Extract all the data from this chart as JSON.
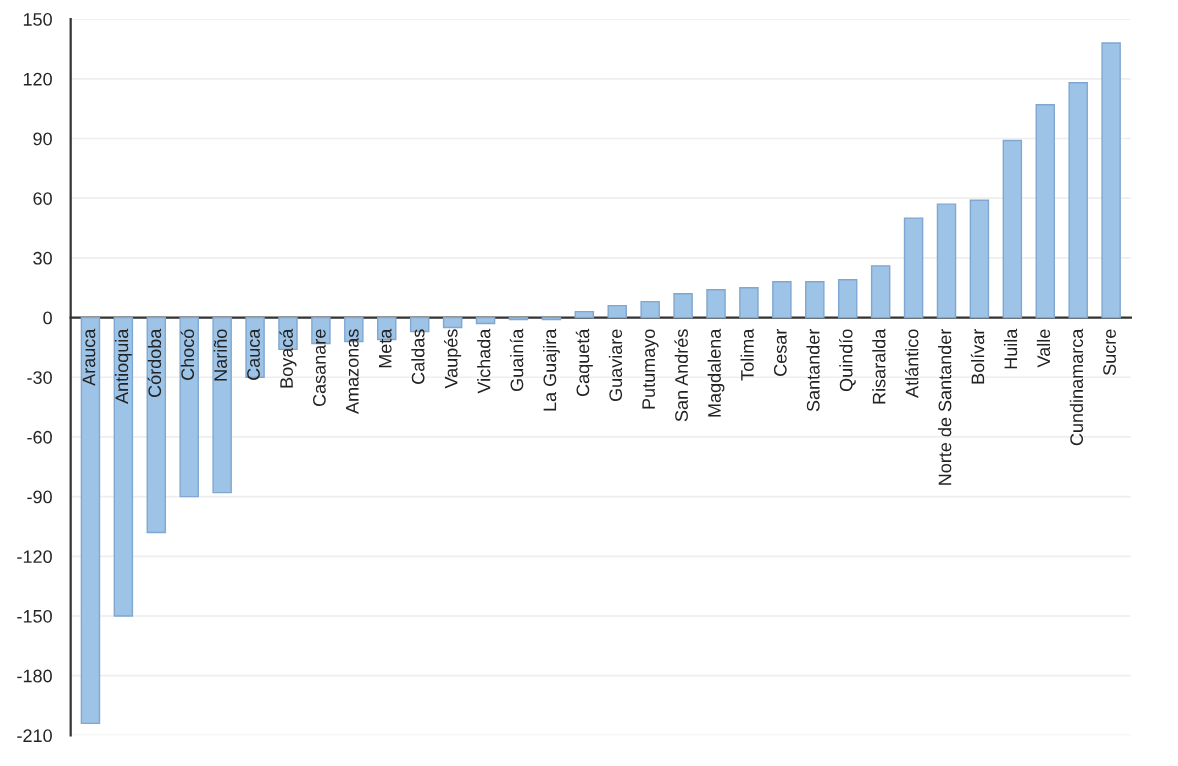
{
  "chart_data": {
    "type": "bar",
    "categories": [
      "Arauca",
      "Antioquia",
      "Córdoba",
      "Chocó",
      "Nariño",
      "Cauca",
      "Boyacá",
      "Casanare",
      "Amazonas",
      "Meta",
      "Caldas",
      "Vaupés",
      "Vichada",
      "Guainía",
      "La Guajira",
      "Caquetá",
      "Guaviare",
      "Putumayo",
      "San Andrés",
      "Magdalena",
      "Tolima",
      "Cesar",
      "Santander",
      "Quindío",
      "Risaralda",
      "Atlántico",
      "Norte de Santander",
      "Bolívar",
      "Huila",
      "Valle",
      "Cundinamarca",
      "Sucre"
    ],
    "values": [
      -204,
      -150,
      -108,
      -90,
      -88,
      -30,
      -16,
      -13,
      -12,
      -11,
      -7,
      -5,
      -3,
      -1,
      -1,
      3,
      6,
      8,
      12,
      14,
      15,
      18,
      18,
      19,
      26,
      50,
      57,
      59,
      89,
      107,
      118,
      138
    ],
    "color": "#9dc3e6",
    "ylim": [
      -210,
      150
    ],
    "yticks": [
      -210,
      -180,
      -150,
      -120,
      -90,
      -60,
      -30,
      0,
      30,
      60,
      90,
      120,
      150
    ],
    "grid": "y"
  }
}
